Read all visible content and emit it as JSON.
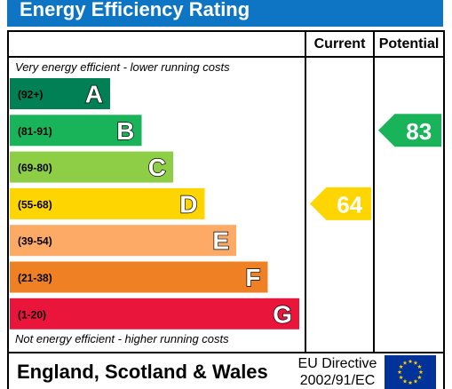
{
  "header": {
    "title": "Energy Efficiency Rating"
  },
  "columns": {
    "current": "Current",
    "potential": "Potential"
  },
  "notes": {
    "top": "Very energy efficient - lower running costs",
    "bottom": "Not energy efficient - higher running costs"
  },
  "chart_data": {
    "type": "bar",
    "bands": [
      {
        "range": "(92+)",
        "letter": "A",
        "color": "#008054"
      },
      {
        "range": "(81-91)",
        "letter": "B",
        "color": "#19b459"
      },
      {
        "range": "(69-80)",
        "letter": "C",
        "color": "#8dce46"
      },
      {
        "range": "(55-68)",
        "letter": "D",
        "color": "#ffd500"
      },
      {
        "range": "(39-54)",
        "letter": "E",
        "color": "#fcaa65"
      },
      {
        "range": "(21-38)",
        "letter": "F",
        "color": "#ef8023"
      },
      {
        "range": "(1-20)",
        "letter": "G",
        "color": "#e9153b"
      }
    ],
    "current": {
      "value": 64,
      "band": "D",
      "color": "#ffd500"
    },
    "potential": {
      "value": 83,
      "band": "B",
      "color": "#19b459"
    }
  },
  "footer": {
    "region": "England, Scotland & Wales",
    "directive_line1": "EU Directive",
    "directive_line2": "2002/91/EC"
  },
  "colors": {
    "header": "#0e74c4",
    "flag_blue": "#003399",
    "flag_star": "#ffcc00"
  },
  "icons": {
    "flag": "eu-flag-icon"
  }
}
